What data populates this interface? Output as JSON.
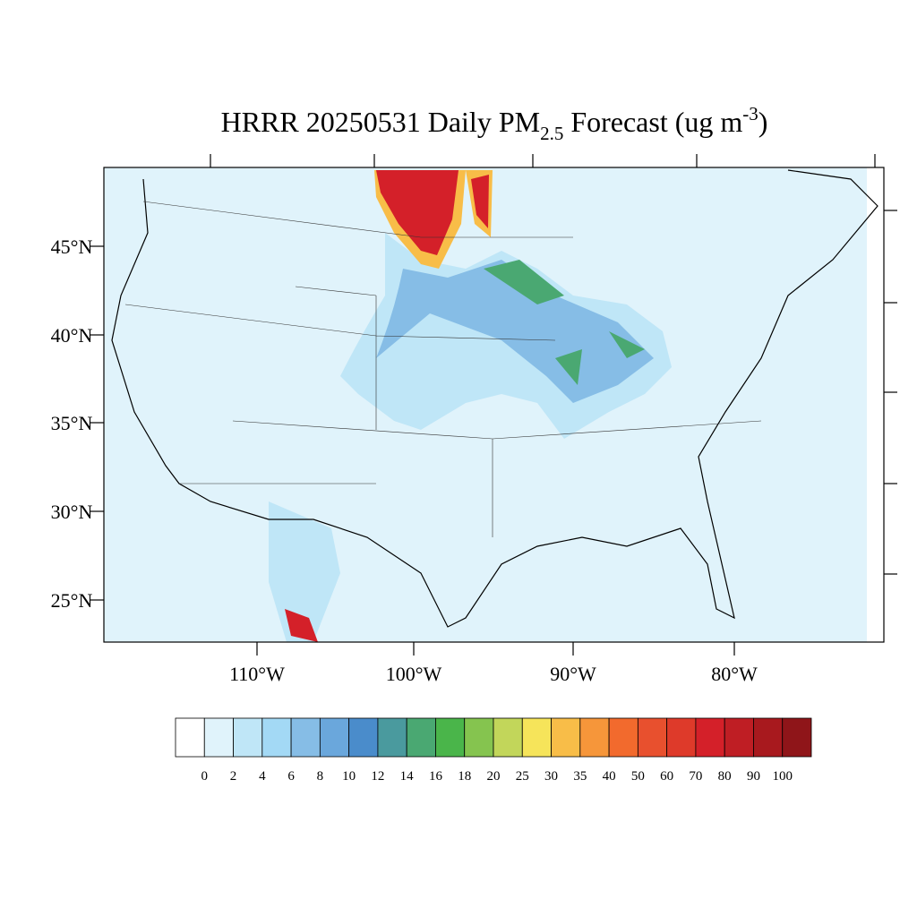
{
  "title": {
    "main": "HRRR 20250531 Daily PM",
    "sub": "2.5",
    "rest": " Forecast (ug m",
    "sup": "-3",
    "close": ")"
  },
  "map": {
    "lat_labels": [
      "45°N",
      "40°N",
      "35°N",
      "30°N",
      "25°N"
    ],
    "lon_labels": [
      "110°W",
      "100°W",
      "90°W",
      "80°W"
    ]
  },
  "colorbar": {
    "labels": [
      0,
      2,
      4,
      6,
      8,
      10,
      12,
      14,
      16,
      18,
      20,
      25,
      30,
      35,
      40,
      50,
      60,
      70,
      80,
      90,
      100
    ],
    "colors": [
      "#ffffff",
      "#e0f3fb",
      "#bfe6f7",
      "#a3d9f5",
      "#86bde6",
      "#6aa7dc",
      "#4a8ccb",
      "#4a9a9e",
      "#4aa872",
      "#4ab54a",
      "#85c44f",
      "#c2d65a",
      "#f6e45a",
      "#f8bd48",
      "#f6963a",
      "#f26a2d",
      "#e8502e",
      "#de3a2a",
      "#d42029",
      "#bf1e24",
      "#a8191e",
      "#8f1519"
    ]
  }
}
